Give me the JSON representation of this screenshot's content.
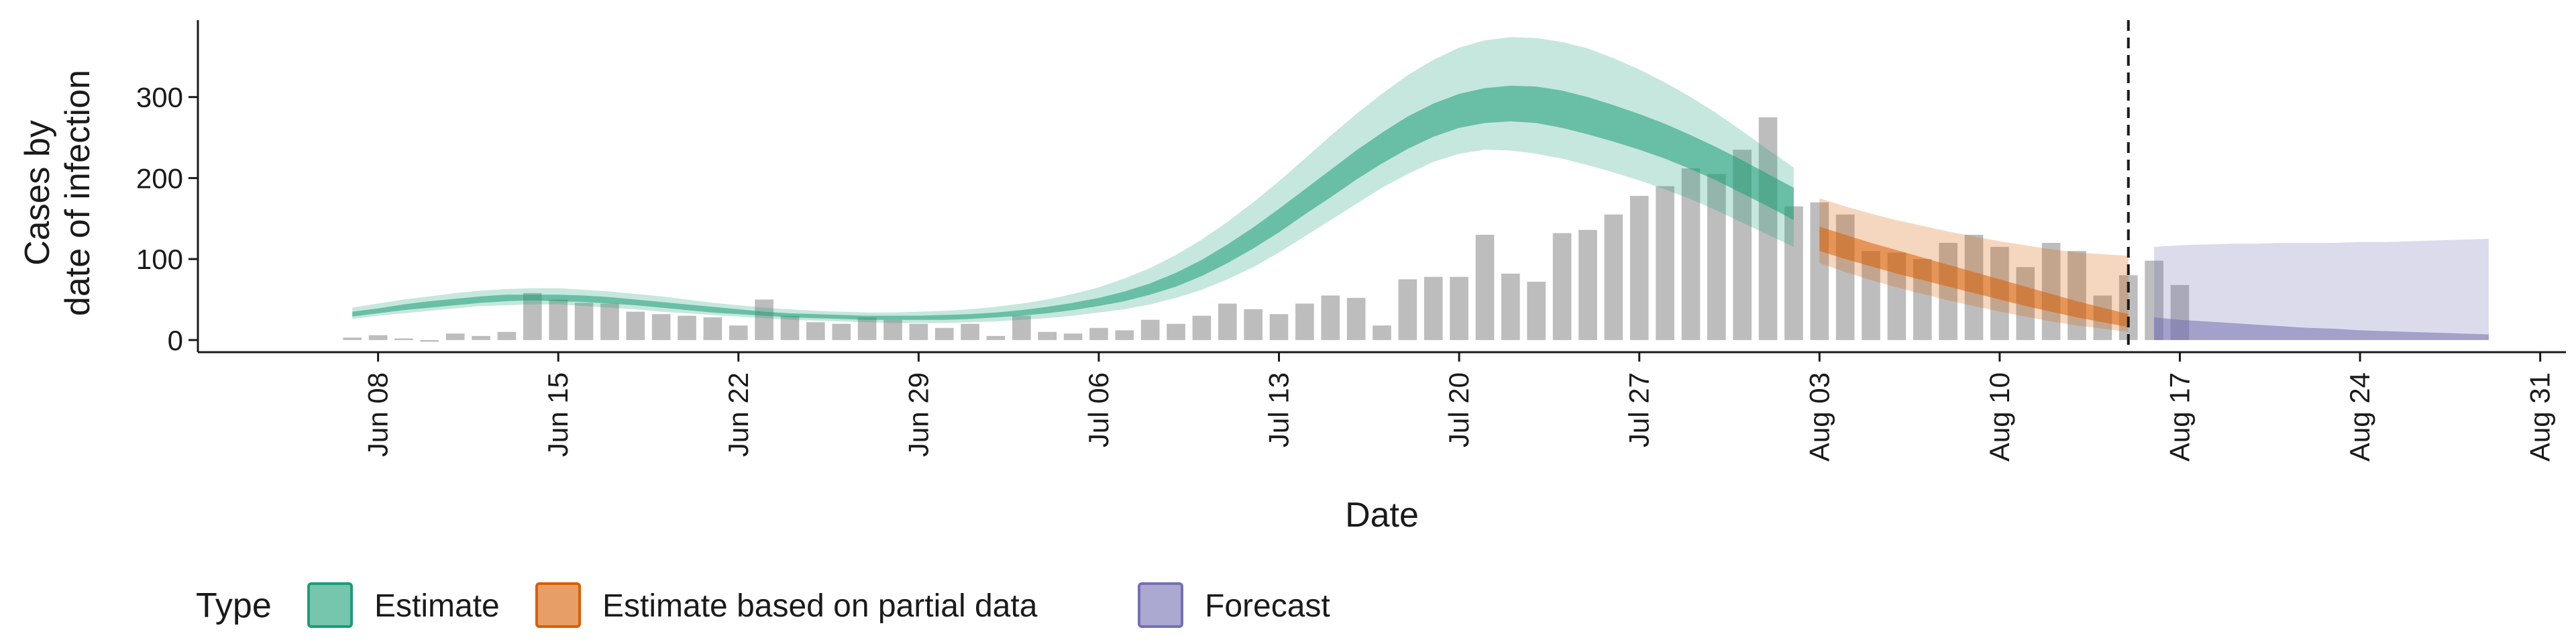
{
  "chart_data": {
    "type": "area",
    "xlabel": "Date",
    "ylabel_lines": [
      "Cases by",
      "date of infection"
    ],
    "xlim": [
      "2020-06-01",
      "2020-09-01"
    ],
    "ylim": [
      -15,
      395
    ],
    "x_ticks": [
      {
        "date": "2020-06-08",
        "label": "Jun 08"
      },
      {
        "date": "2020-06-15",
        "label": "Jun 15"
      },
      {
        "date": "2020-06-22",
        "label": "Jun 22"
      },
      {
        "date": "2020-06-29",
        "label": "Jun 29"
      },
      {
        "date": "2020-07-06",
        "label": "Jul 06"
      },
      {
        "date": "2020-07-13",
        "label": "Jul 13"
      },
      {
        "date": "2020-07-20",
        "label": "Jul 20"
      },
      {
        "date": "2020-07-27",
        "label": "Jul 27"
      },
      {
        "date": "2020-08-03",
        "label": "Aug 03"
      },
      {
        "date": "2020-08-10",
        "label": "Aug 10"
      },
      {
        "date": "2020-08-17",
        "label": "Aug 17"
      },
      {
        "date": "2020-08-24",
        "label": "Aug 24"
      },
      {
        "date": "2020-08-31",
        "label": "Aug 31"
      }
    ],
    "y_ticks": [
      0,
      100,
      200,
      300
    ],
    "forecast_cutoff_date": "2020-08-15",
    "legend_title": "Type",
    "legend_position": "bottom",
    "colors": {
      "estimate": "#1b9e77",
      "partial": "#d95f02",
      "forecast": "#7570b3",
      "bars": "#bdbdbd"
    },
    "observed_cases": {
      "start_date": "2020-06-07",
      "values": [
        3,
        6,
        2,
        0,
        8,
        5,
        10,
        58,
        50,
        46,
        45,
        35,
        32,
        30,
        28,
        18,
        50,
        30,
        22,
        20,
        28,
        25,
        20,
        15,
        20,
        5,
        30,
        10,
        8,
        15,
        12,
        25,
        20,
        30,
        45,
        38,
        32,
        45,
        55,
        52,
        18,
        75,
        78,
        78,
        130,
        82,
        72,
        132,
        136,
        155,
        178,
        190,
        212,
        205,
        235,
        275,
        165,
        170,
        155,
        110,
        108,
        100,
        120,
        130,
        115,
        90,
        120,
        110,
        55,
        80,
        98,
        68
      ]
    },
    "series": [
      {
        "name": "Estimate",
        "key": "estimate",
        "start_date": "2020-06-07",
        "lower90": [
          26,
          30,
          33,
          36,
          39,
          42,
          43,
          44,
          44,
          42,
          40,
          38,
          35,
          33,
          31,
          29,
          27,
          25,
          24,
          23,
          22,
          21,
          21,
          21,
          22,
          23,
          25,
          27,
          30,
          34,
          38,
          44,
          52,
          62,
          75,
          90,
          108,
          128,
          148,
          168,
          188,
          205,
          220,
          230,
          235,
          234,
          230,
          224,
          216,
          207,
          197,
          186,
          174,
          160,
          145,
          130,
          115
        ],
        "lower50": [
          29,
          33,
          37,
          40,
          43,
          46,
          48,
          49,
          48,
          47,
          45,
          43,
          40,
          37,
          34,
          32,
          30,
          28,
          27,
          26,
          25,
          25,
          25,
          25,
          26,
          28,
          30,
          33,
          37,
          42,
          48,
          56,
          66,
          79,
          95,
          113,
          133,
          155,
          176,
          198,
          218,
          236,
          251,
          262,
          268,
          270,
          268,
          262,
          254,
          245,
          235,
          224,
          211,
          197,
          181,
          165,
          148
        ],
        "upper50": [
          35,
          39,
          44,
          48,
          51,
          54,
          56,
          56,
          56,
          55,
          53,
          50,
          47,
          44,
          41,
          38,
          35,
          33,
          32,
          31,
          30,
          30,
          30,
          31,
          32,
          34,
          37,
          41,
          46,
          52,
          60,
          70,
          83,
          99,
          118,
          139,
          162,
          186,
          210,
          234,
          256,
          276,
          292,
          304,
          311,
          314,
          313,
          308,
          300,
          290,
          279,
          267,
          253,
          238,
          222,
          205,
          188
        ],
        "upper90": [
          40,
          45,
          50,
          54,
          58,
          61,
          63,
          64,
          64,
          62,
          60,
          57,
          54,
          50,
          46,
          43,
          40,
          38,
          36,
          35,
          34,
          34,
          35,
          36,
          38,
          41,
          45,
          50,
          57,
          65,
          76,
          89,
          105,
          124,
          146,
          170,
          196,
          224,
          252,
          279,
          304,
          327,
          346,
          361,
          370,
          374,
          373,
          368,
          360,
          348,
          334,
          318,
          300,
          280,
          258,
          235,
          213
        ]
      },
      {
        "name": "Estimate based on partial data",
        "key": "partial",
        "start_date": "2020-08-03",
        "lower90": [
          95,
          84,
          74,
          65,
          57,
          49,
          42,
          35,
          29,
          23,
          18,
          14,
          10
        ],
        "lower50": [
          110,
          100,
          91,
          82,
          74,
          66,
          58,
          50,
          42,
          35,
          28,
          22,
          16
        ],
        "upper50": [
          140,
          130,
          120,
          111,
          102,
          93,
          84,
          75,
          66,
          57,
          48,
          40,
          32
        ],
        "upper90": [
          175,
          165,
          156,
          148,
          141,
          134,
          128,
          122,
          117,
          112,
          108,
          106,
          104
        ]
      },
      {
        "name": "Forecast",
        "key": "forecast",
        "start_date": "2020-08-16",
        "lower90": [
          0,
          0,
          0,
          0,
          0,
          0,
          0,
          0,
          0,
          0,
          0,
          0,
          0,
          0
        ],
        "lower50": [
          0,
          0,
          0,
          0,
          0,
          0,
          0,
          0,
          0,
          0,
          0,
          0,
          0,
          0
        ],
        "upper50": [
          28,
          25,
          23,
          21,
          19,
          17,
          15,
          14,
          12,
          11,
          10,
          9,
          8,
          7
        ],
        "upper90": [
          115,
          117,
          118,
          119,
          119,
          120,
          120,
          120,
          121,
          121,
          122,
          123,
          124,
          125
        ]
      }
    ]
  },
  "legend": {
    "title": "Type",
    "items": [
      {
        "key": "estimate",
        "label": "Estimate"
      },
      {
        "key": "partial",
        "label": "Estimate based on partial data"
      },
      {
        "key": "forecast",
        "label": "Forecast"
      }
    ]
  }
}
